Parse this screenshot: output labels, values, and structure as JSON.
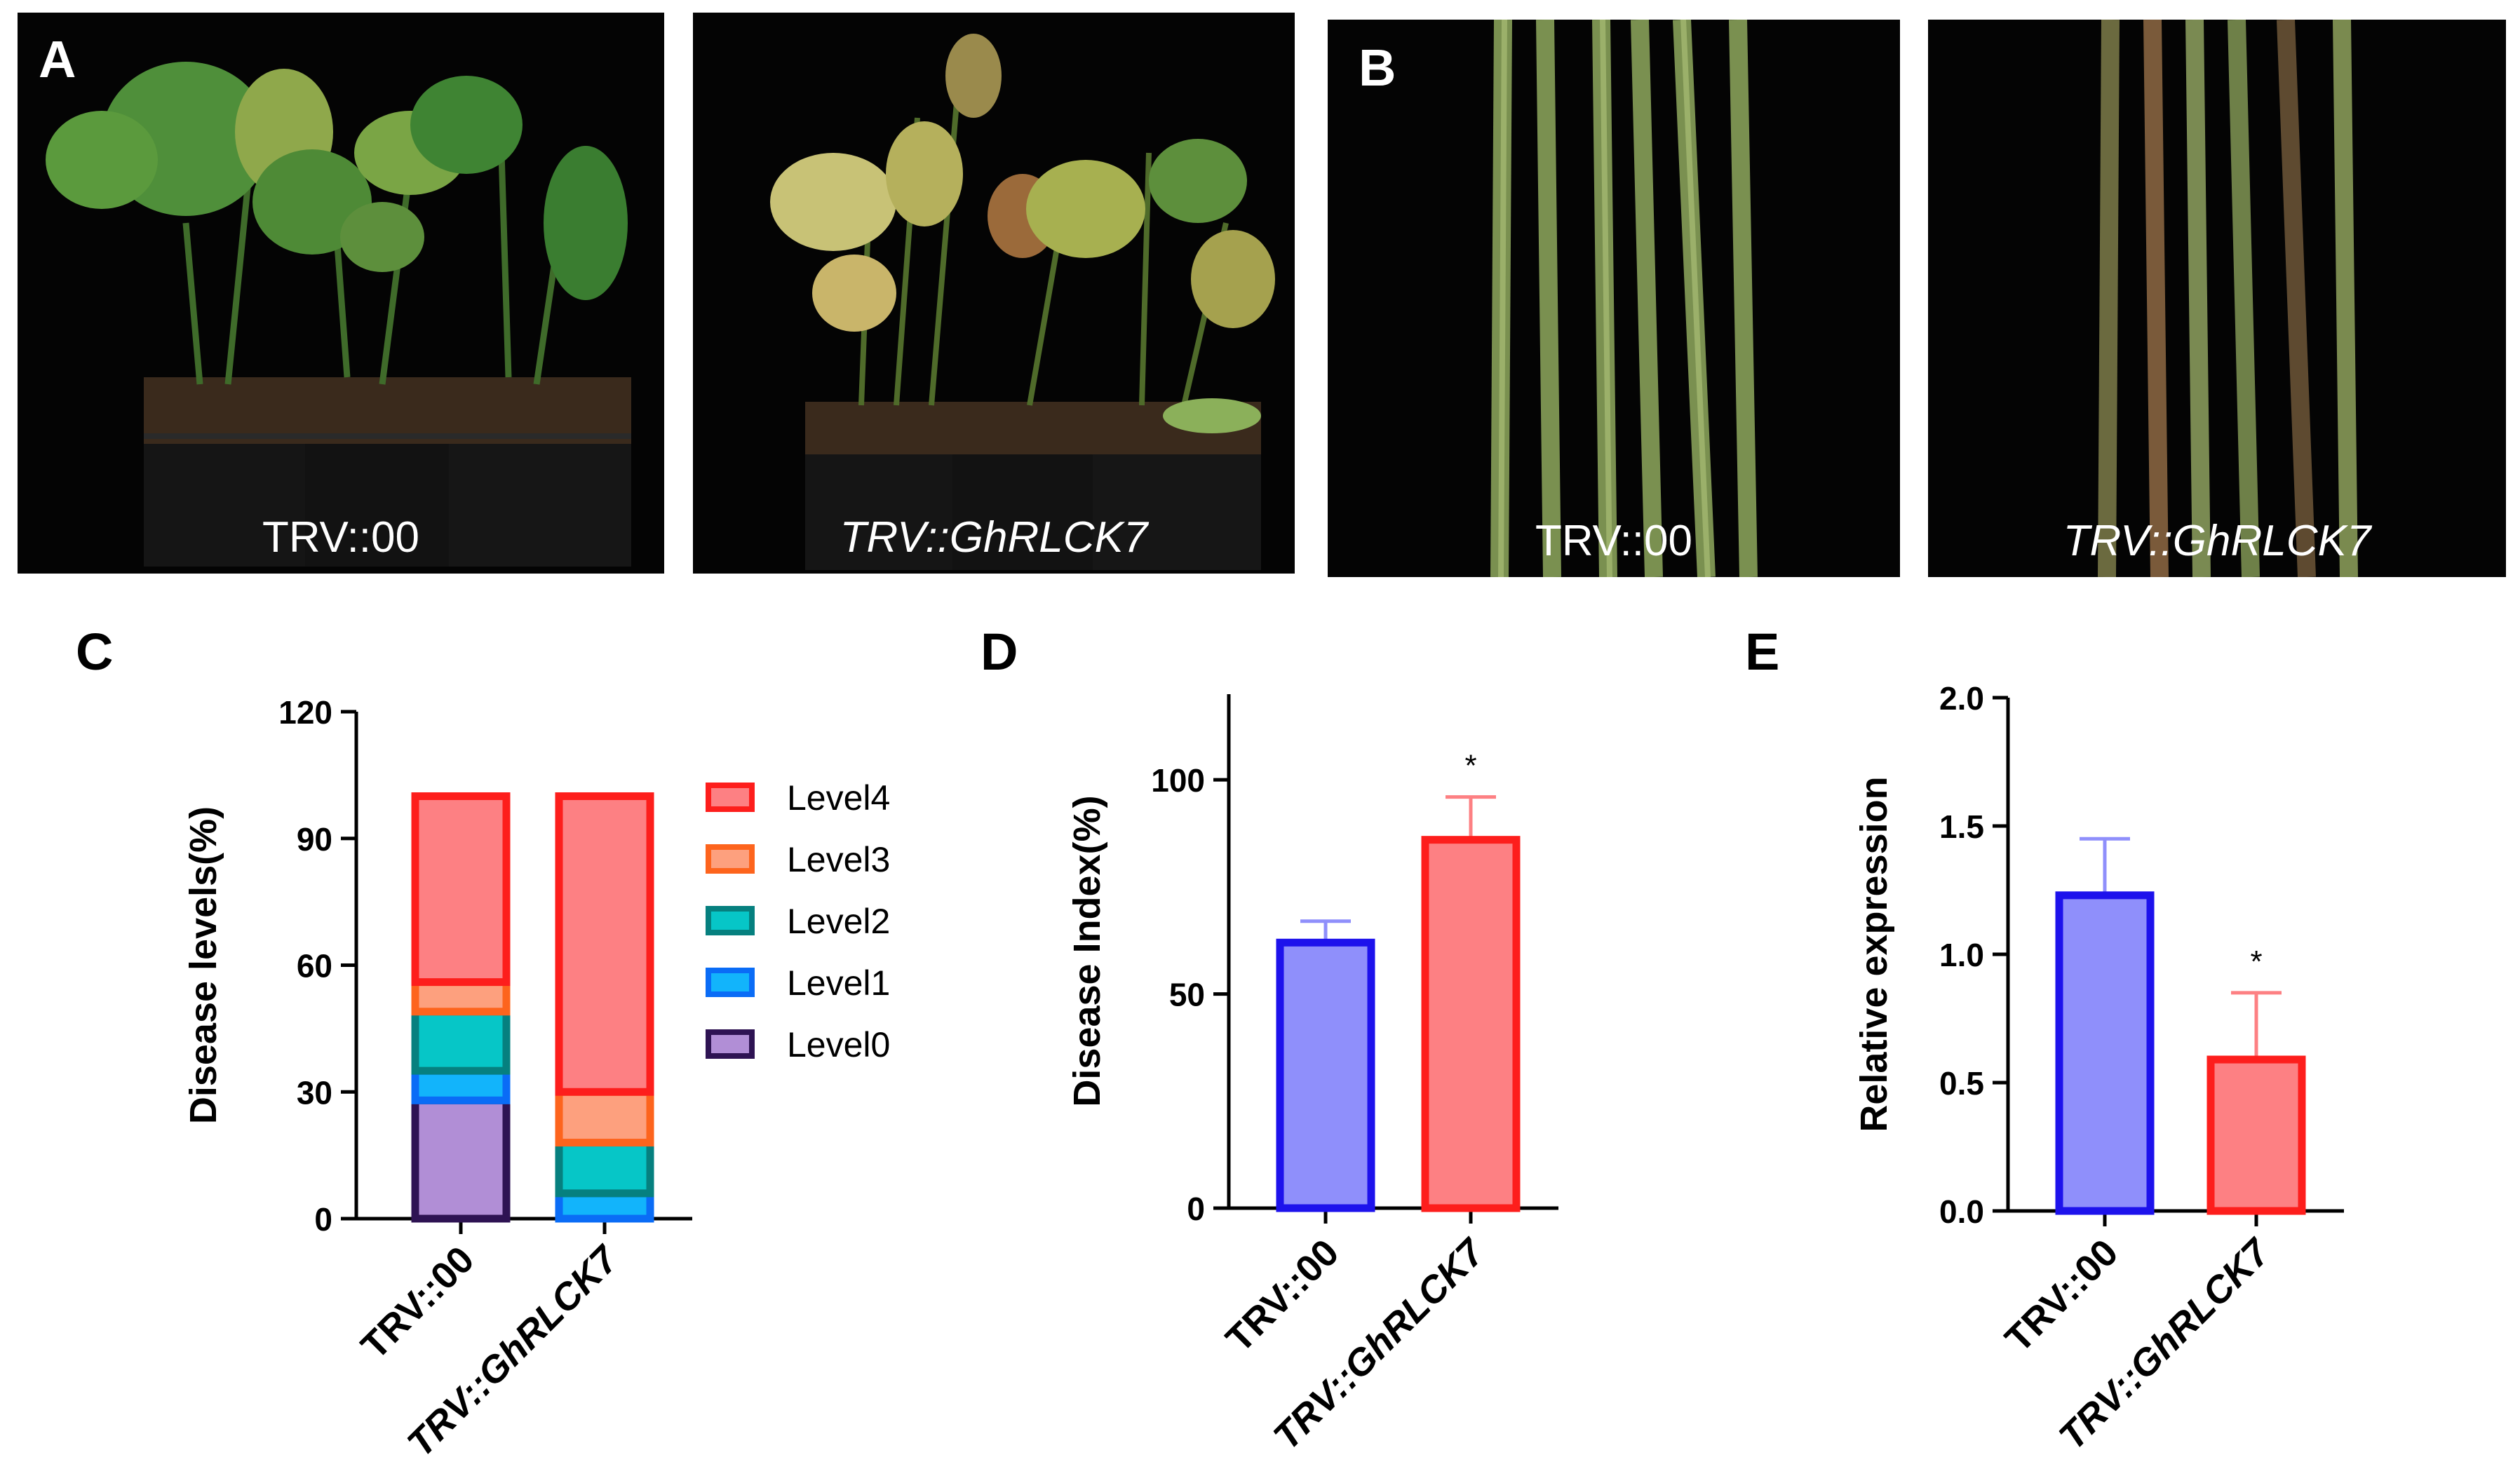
{
  "panels": {
    "A": {
      "letter": "A",
      "left_caption": "TRV::00",
      "right_caption": "TRV::GhRLCK7"
    },
    "B": {
      "letter": "B",
      "left_caption": "TRV::00",
      "right_caption": "TRV::GhRLCK7"
    },
    "C": {
      "letter": "C"
    },
    "D": {
      "letter": "D"
    },
    "E": {
      "letter": "E"
    }
  },
  "colors": {
    "level4_fill": "#fd8083",
    "level4_edge": "#fd1e1c",
    "level3_fill": "#fda07e",
    "level3_edge": "#fd641d",
    "level2_fill": "#06c6c7",
    "level2_edge": "#06807f",
    "level1_fill": "#12b4fb",
    "level1_edge": "#0a6cf6",
    "level0_fill": "#b18ed6",
    "level0_edge": "#2e1353",
    "blue_fill": "#8f8ffb",
    "blue_edge": "#1d12ec",
    "red_fill": "#fd8083",
    "red_edge": "#fd1e1c"
  },
  "chart_data": [
    {
      "id": "C",
      "type": "bar",
      "stacked": true,
      "categories": [
        "TRV::00",
        "TRV::GhRLCK7"
      ],
      "ylabel": "Disease levels(%)",
      "ylim": [
        0,
        120
      ],
      "yticks": [
        "0",
        "30",
        "60",
        "90",
        "120"
      ],
      "legend_position": "right",
      "series": [
        {
          "name": "Level0",
          "key": "level0",
          "values": [
            28,
            0
          ]
        },
        {
          "name": "Level1",
          "key": "level1",
          "values": [
            7,
            6
          ]
        },
        {
          "name": "Level2",
          "key": "level2",
          "values": [
            14,
            12
          ]
        },
        {
          "name": "Level3",
          "key": "level3",
          "values": [
            7,
            12
          ]
        },
        {
          "name": "Level4",
          "key": "level4",
          "values": [
            44,
            70
          ]
        }
      ]
    },
    {
      "id": "D",
      "type": "bar",
      "categories": [
        "TRV::00",
        "TRV::GhRLCK7"
      ],
      "ylabel": "Disease Index(%)",
      "ylim": [
        0,
        120
      ],
      "yticks": [
        "0",
        "50",
        "100"
      ],
      "values": [
        62,
        86
      ],
      "errors": [
        5,
        10
      ],
      "annotations": [
        "",
        "*"
      ]
    },
    {
      "id": "E",
      "type": "bar",
      "categories": [
        "TRV::00",
        "TRV::GhRLCK7"
      ],
      "ylabel": "Relative expression",
      "ylim": [
        0,
        2.0
      ],
      "yticks": [
        "0.0",
        "0.5",
        "1.0",
        "1.5",
        "2.0"
      ],
      "values": [
        1.23,
        0.59
      ],
      "errors": [
        0.22,
        0.26
      ],
      "annotations": [
        "",
        "*"
      ]
    }
  ]
}
